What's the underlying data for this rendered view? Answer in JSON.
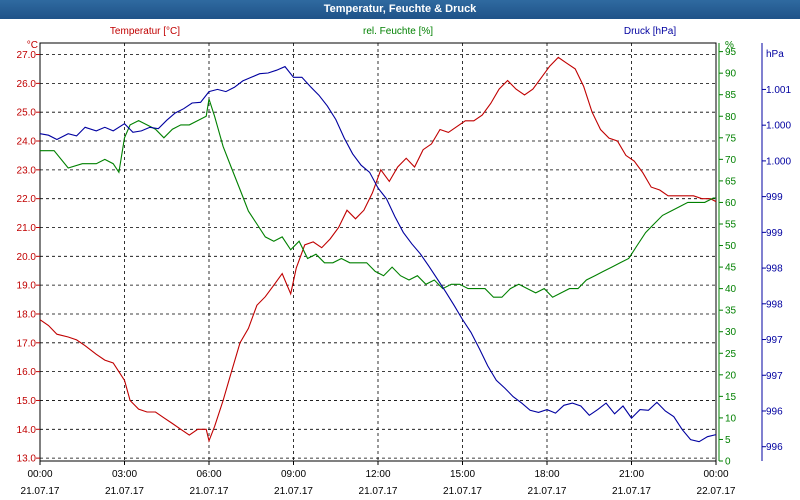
{
  "window": {
    "title": "Temperatur, Feuchte & Druck"
  },
  "chart_data": {
    "type": "line",
    "title": "Temperatur, Feuchte & Druck",
    "grid": true,
    "x_ticks": [
      {
        "hour": 0,
        "time": "00:00",
        "date": "21.07.17"
      },
      {
        "hour": 3,
        "time": "03:00",
        "date": "21.07.17"
      },
      {
        "hour": 6,
        "time": "06:00",
        "date": "21.07.17"
      },
      {
        "hour": 9,
        "time": "09:00",
        "date": "21.07.17"
      },
      {
        "hour": 12,
        "time": "12:00",
        "date": "21.07.17"
      },
      {
        "hour": 15,
        "time": "15:00",
        "date": "21.07.17"
      },
      {
        "hour": 18,
        "time": "18:00",
        "date": "21.07.17"
      },
      {
        "hour": 21,
        "time": "21:00",
        "date": "21.07.17"
      },
      {
        "hour": 24,
        "time": "00:00",
        "date": "22.07.17"
      }
    ],
    "axes": {
      "temperature": {
        "label": "Temperatur [°C]",
        "unit": "°C",
        "color": "#c00000",
        "range": [
          12.9,
          27.4
        ],
        "ticks": [
          "13.0",
          "14.0",
          "15.0",
          "16.0",
          "17.0",
          "18.0",
          "19.0",
          "20.0",
          "21.0",
          "22.0",
          "23.0",
          "24.0",
          "25.0",
          "26.0",
          "27.0"
        ]
      },
      "humidity": {
        "label": "rel. Feuchte [%]",
        "unit": "%",
        "color": "#008000",
        "range": [
          0,
          97
        ],
        "ticks": [
          "0",
          "5",
          "10",
          "15",
          "20",
          "25",
          "30",
          "35",
          "40",
          "45",
          "50",
          "55",
          "60",
          "65",
          "70",
          "75",
          "80",
          "85",
          "90",
          "95"
        ]
      },
      "pressure": {
        "label": "Druck [hPa]",
        "unit": "hPa",
        "color": "#0000a0",
        "range": [
          995.6,
          1001.45
        ],
        "ticks": [
          {
            "value": 995.8,
            "label": "996"
          },
          {
            "value": 996.3,
            "label": "996"
          },
          {
            "value": 996.8,
            "label": "997"
          },
          {
            "value": 997.3,
            "label": "997"
          },
          {
            "value": 997.8,
            "label": "998"
          },
          {
            "value": 998.3,
            "label": "998"
          },
          {
            "value": 998.8,
            "label": "999"
          },
          {
            "value": 999.3,
            "label": "999"
          },
          {
            "value": 999.8,
            "label": "1.000"
          },
          {
            "value": 1000.3,
            "label": "1.000"
          },
          {
            "value": 1000.8,
            "label": "1.001"
          },
          {
            "value": 1001.3,
            "label": "hPa"
          }
        ]
      }
    },
    "series": [
      {
        "name": "Temperatur [°C]",
        "axis": "temperature",
        "color": "#c00000",
        "points": [
          [
            0,
            17.8
          ],
          [
            0.3,
            17.6
          ],
          [
            0.6,
            17.3
          ],
          [
            1.0,
            17.2
          ],
          [
            1.3,
            17.1
          ],
          [
            1.6,
            16.9
          ],
          [
            2.0,
            16.6
          ],
          [
            2.3,
            16.4
          ],
          [
            2.6,
            16.3
          ],
          [
            3.0,
            15.7
          ],
          [
            3.2,
            15.0
          ],
          [
            3.5,
            14.7
          ],
          [
            3.8,
            14.6
          ],
          [
            4.1,
            14.6
          ],
          [
            4.4,
            14.4
          ],
          [
            4.7,
            14.2
          ],
          [
            5.0,
            14.0
          ],
          [
            5.3,
            13.8
          ],
          [
            5.6,
            14.0
          ],
          [
            5.9,
            14.0
          ],
          [
            6.0,
            13.6
          ],
          [
            6.2,
            14.1
          ],
          [
            6.5,
            15.0
          ],
          [
            6.8,
            16.0
          ],
          [
            7.1,
            17.0
          ],
          [
            7.4,
            17.5
          ],
          [
            7.7,
            18.3
          ],
          [
            8.0,
            18.6
          ],
          [
            8.3,
            19.0
          ],
          [
            8.6,
            19.4
          ],
          [
            8.9,
            18.7
          ],
          [
            9.1,
            19.6
          ],
          [
            9.4,
            20.4
          ],
          [
            9.7,
            20.5
          ],
          [
            10.0,
            20.3
          ],
          [
            10.3,
            20.6
          ],
          [
            10.6,
            21.0
          ],
          [
            10.9,
            21.6
          ],
          [
            11.2,
            21.3
          ],
          [
            11.5,
            21.6
          ],
          [
            11.8,
            22.2
          ],
          [
            12.1,
            23.0
          ],
          [
            12.4,
            22.6
          ],
          [
            12.7,
            23.1
          ],
          [
            13.0,
            23.4
          ],
          [
            13.3,
            23.1
          ],
          [
            13.6,
            23.7
          ],
          [
            13.9,
            23.9
          ],
          [
            14.2,
            24.4
          ],
          [
            14.5,
            24.3
          ],
          [
            14.8,
            24.5
          ],
          [
            15.1,
            24.7
          ],
          [
            15.4,
            24.7
          ],
          [
            15.7,
            24.9
          ],
          [
            16.0,
            25.3
          ],
          [
            16.3,
            25.8
          ],
          [
            16.6,
            26.1
          ],
          [
            16.9,
            25.8
          ],
          [
            17.2,
            25.6
          ],
          [
            17.5,
            25.8
          ],
          [
            17.8,
            26.2
          ],
          [
            18.1,
            26.6
          ],
          [
            18.4,
            26.9
          ],
          [
            18.7,
            26.7
          ],
          [
            19.0,
            26.5
          ],
          [
            19.3,
            25.9
          ],
          [
            19.6,
            25.0
          ],
          [
            19.9,
            24.4
          ],
          [
            20.2,
            24.1
          ],
          [
            20.5,
            24.0
          ],
          [
            20.8,
            23.5
          ],
          [
            21.1,
            23.3
          ],
          [
            21.4,
            22.9
          ],
          [
            21.7,
            22.4
          ],
          [
            22.0,
            22.3
          ],
          [
            22.3,
            22.1
          ],
          [
            22.6,
            22.1
          ],
          [
            22.9,
            22.1
          ],
          [
            23.2,
            22.1
          ],
          [
            23.5,
            22.0
          ],
          [
            23.8,
            22.0
          ],
          [
            24.0,
            21.9
          ]
        ]
      },
      {
        "name": "rel. Feuchte [%]",
        "axis": "humidity",
        "color": "#008000",
        "points": [
          [
            0,
            72
          ],
          [
            0.5,
            72
          ],
          [
            1.0,
            68
          ],
          [
            1.5,
            69
          ],
          [
            2.0,
            69
          ],
          [
            2.3,
            70
          ],
          [
            2.6,
            69
          ],
          [
            2.8,
            67
          ],
          [
            3.0,
            75
          ],
          [
            3.2,
            78
          ],
          [
            3.5,
            79
          ],
          [
            3.8,
            78
          ],
          [
            4.1,
            77
          ],
          [
            4.4,
            75
          ],
          [
            4.7,
            77
          ],
          [
            5.0,
            78
          ],
          [
            5.3,
            78
          ],
          [
            5.6,
            79
          ],
          [
            5.9,
            80
          ],
          [
            6.0,
            84
          ],
          [
            6.2,
            80
          ],
          [
            6.5,
            73
          ],
          [
            6.8,
            68
          ],
          [
            7.1,
            63
          ],
          [
            7.4,
            58
          ],
          [
            7.7,
            55
          ],
          [
            8.0,
            52
          ],
          [
            8.3,
            51
          ],
          [
            8.6,
            52
          ],
          [
            8.9,
            49
          ],
          [
            9.2,
            51
          ],
          [
            9.5,
            47
          ],
          [
            9.8,
            48
          ],
          [
            10.1,
            46
          ],
          [
            10.4,
            46
          ],
          [
            10.7,
            47
          ],
          [
            11.0,
            46
          ],
          [
            11.3,
            46
          ],
          [
            11.6,
            46
          ],
          [
            11.9,
            44
          ],
          [
            12.2,
            43
          ],
          [
            12.5,
            45
          ],
          [
            12.8,
            43
          ],
          [
            13.1,
            42
          ],
          [
            13.4,
            43
          ],
          [
            13.7,
            41
          ],
          [
            14.0,
            42
          ],
          [
            14.3,
            40
          ],
          [
            14.6,
            41
          ],
          [
            14.9,
            41
          ],
          [
            15.2,
            40
          ],
          [
            15.5,
            40
          ],
          [
            15.8,
            40
          ],
          [
            16.1,
            38
          ],
          [
            16.4,
            38
          ],
          [
            16.7,
            40
          ],
          [
            17.0,
            41
          ],
          [
            17.3,
            40
          ],
          [
            17.6,
            39
          ],
          [
            17.9,
            40
          ],
          [
            18.2,
            38
          ],
          [
            18.5,
            39
          ],
          [
            18.8,
            40
          ],
          [
            19.1,
            40
          ],
          [
            19.4,
            42
          ],
          [
            19.7,
            43
          ],
          [
            20.0,
            44
          ],
          [
            20.3,
            45
          ],
          [
            20.6,
            46
          ],
          [
            20.9,
            47
          ],
          [
            21.2,
            50
          ],
          [
            21.5,
            53
          ],
          [
            21.8,
            55
          ],
          [
            22.1,
            57
          ],
          [
            22.4,
            58
          ],
          [
            22.7,
            59
          ],
          [
            23.0,
            60
          ],
          [
            23.3,
            60
          ],
          [
            23.6,
            60
          ],
          [
            23.9,
            61
          ],
          [
            24.0,
            61
          ]
        ]
      },
      {
        "name": "Druck [hPa]",
        "axis": "pressure",
        "color": "#0000a0",
        "points": [
          [
            0,
            1000.18
          ],
          [
            0.3,
            1000.16
          ],
          [
            0.6,
            1000.1
          ],
          [
            1.0,
            1000.18
          ],
          [
            1.3,
            1000.15
          ],
          [
            1.6,
            1000.27
          ],
          [
            2.0,
            1000.22
          ],
          [
            2.3,
            1000.27
          ],
          [
            2.6,
            1000.22
          ],
          [
            3.0,
            1000.32
          ],
          [
            3.3,
            1000.2
          ],
          [
            3.6,
            1000.22
          ],
          [
            3.9,
            1000.27
          ],
          [
            4.2,
            1000.25
          ],
          [
            4.5,
            1000.37
          ],
          [
            4.8,
            1000.47
          ],
          [
            5.1,
            1000.53
          ],
          [
            5.4,
            1000.61
          ],
          [
            5.7,
            1000.62
          ],
          [
            6.0,
            1000.77
          ],
          [
            6.3,
            1000.8
          ],
          [
            6.6,
            1000.77
          ],
          [
            6.9,
            1000.83
          ],
          [
            7.2,
            1000.92
          ],
          [
            7.5,
            1000.97
          ],
          [
            7.8,
            1001.02
          ],
          [
            8.1,
            1001.03
          ],
          [
            8.4,
            1001.07
          ],
          [
            8.7,
            1001.12
          ],
          [
            9.0,
            1000.97
          ],
          [
            9.3,
            1000.97
          ],
          [
            9.6,
            1000.84
          ],
          [
            9.9,
            1000.72
          ],
          [
            10.2,
            1000.57
          ],
          [
            10.5,
            1000.38
          ],
          [
            10.8,
            1000.12
          ],
          [
            11.1,
            999.9
          ],
          [
            11.4,
            999.74
          ],
          [
            11.7,
            999.64
          ],
          [
            12.0,
            999.42
          ],
          [
            12.3,
            999.27
          ],
          [
            12.6,
            999.02
          ],
          [
            12.9,
            998.8
          ],
          [
            13.2,
            998.64
          ],
          [
            13.5,
            998.5
          ],
          [
            13.8,
            998.33
          ],
          [
            14.1,
            998.15
          ],
          [
            14.4,
            997.97
          ],
          [
            14.7,
            997.78
          ],
          [
            15.0,
            997.58
          ],
          [
            15.3,
            997.4
          ],
          [
            15.6,
            997.17
          ],
          [
            15.9,
            996.93
          ],
          [
            16.2,
            996.73
          ],
          [
            16.5,
            996.62
          ],
          [
            16.8,
            996.5
          ],
          [
            17.1,
            996.41
          ],
          [
            17.4,
            996.31
          ],
          [
            17.7,
            996.28
          ],
          [
            18.0,
            996.32
          ],
          [
            18.3,
            996.27
          ],
          [
            18.6,
            996.38
          ],
          [
            18.9,
            996.41
          ],
          [
            19.2,
            996.37
          ],
          [
            19.5,
            996.24
          ],
          [
            19.8,
            996.32
          ],
          [
            20.1,
            996.41
          ],
          [
            20.4,
            996.26
          ],
          [
            20.7,
            996.37
          ],
          [
            21.0,
            996.2
          ],
          [
            21.3,
            996.32
          ],
          [
            21.6,
            996.31
          ],
          [
            21.9,
            996.42
          ],
          [
            22.2,
            996.3
          ],
          [
            22.5,
            996.22
          ],
          [
            22.8,
            996.04
          ],
          [
            23.1,
            995.9
          ],
          [
            23.4,
            995.87
          ],
          [
            23.7,
            995.94
          ],
          [
            24.0,
            995.97
          ]
        ]
      }
    ]
  }
}
